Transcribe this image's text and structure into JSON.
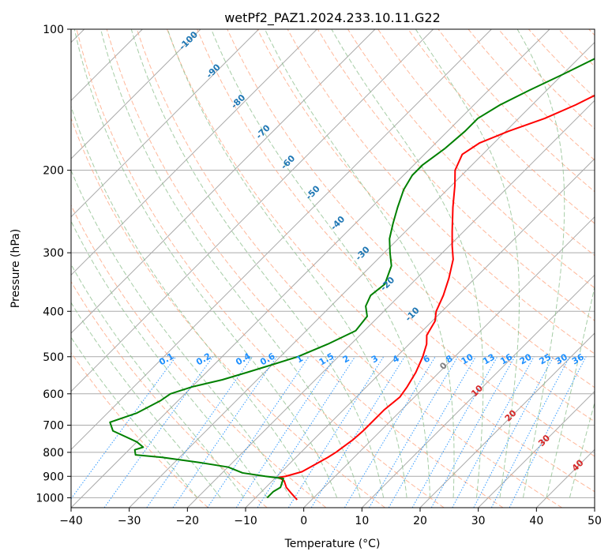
{
  "chart_data": {
    "type": "line",
    "title": "wetPf2_PAZ1.2024.233.10.11.G22",
    "xlabel": "Temperature (°C)",
    "ylabel": "Pressure (hPa)",
    "xlim": [
      -40,
      50
    ],
    "ylim": [
      1050,
      100
    ],
    "y_scale": "log",
    "x_ticks": [
      -40,
      -30,
      -20,
      -10,
      0,
      10,
      20,
      30,
      40,
      50
    ],
    "y_ticks": [
      100,
      200,
      300,
      400,
      500,
      600,
      700,
      800,
      900,
      1000
    ],
    "grid": true,
    "skew": true,
    "colors": {
      "temperature": "#ff0000",
      "dewpoint": "#008000",
      "isotherm": "#aaaaaa",
      "dry_adiabat": "#ffa07a",
      "moist_adiabat": "#90c090",
      "mixing_ratio": "#1e90ff",
      "dry_label": "#d62728",
      "moist_label": "#1f77b4",
      "mixing_label": "#1e90ff",
      "zero_label": "#808080"
    },
    "series": [
      {
        "key": "temperature",
        "points": [
          [
            1010,
            -2.5
          ],
          [
            980,
            -4.5
          ],
          [
            950,
            -6.5
          ],
          [
            920,
            -8.0
          ],
          [
            905,
            -9.5
          ],
          [
            900,
            -8.5
          ],
          [
            880,
            -6.5
          ],
          [
            850,
            -5.5
          ],
          [
            820,
            -4.5
          ],
          [
            800,
            -4.0
          ],
          [
            750,
            -3.2
          ],
          [
            720,
            -3.0
          ],
          [
            700,
            -3.0
          ],
          [
            650,
            -3.0
          ],
          [
            610,
            -2.5
          ],
          [
            580,
            -3.0
          ],
          [
            540,
            -4.0
          ],
          [
            500,
            -5.5
          ],
          [
            470,
            -7.0
          ],
          [
            450,
            -8.5
          ],
          [
            420,
            -9.5
          ],
          [
            400,
            -11.0
          ],
          [
            370,
            -12.5
          ],
          [
            340,
            -14.5
          ],
          [
            310,
            -17.0
          ],
          [
            290,
            -19.5
          ],
          [
            270,
            -22.0
          ],
          [
            240,
            -26.0
          ],
          [
            215,
            -29.5
          ],
          [
            200,
            -32.0
          ],
          [
            185,
            -33.5
          ],
          [
            175,
            -32.5
          ],
          [
            165,
            -29.5
          ],
          [
            155,
            -25.5
          ],
          [
            145,
            -22.5
          ],
          [
            135,
            -20.0
          ],
          [
            125,
            -18.5
          ],
          [
            115,
            -16.5
          ],
          [
            105,
            -13.5
          ],
          [
            100,
            -11.5
          ]
        ]
      },
      {
        "key": "dewpoint",
        "points": [
          [
            1000,
            -8.0
          ],
          [
            970,
            -8.0
          ],
          [
            950,
            -7.5
          ],
          [
            930,
            -8.0
          ],
          [
            910,
            -8.5
          ],
          [
            900,
            -12.0
          ],
          [
            885,
            -16.5
          ],
          [
            860,
            -20.0
          ],
          [
            840,
            -26.0
          ],
          [
            820,
            -33.0
          ],
          [
            810,
            -38.0
          ],
          [
            790,
            -39.0
          ],
          [
            780,
            -38.0
          ],
          [
            760,
            -40.0
          ],
          [
            720,
            -46.0
          ],
          [
            690,
            -48.0
          ],
          [
            660,
            -45.0
          ],
          [
            640,
            -44.0
          ],
          [
            620,
            -43.0
          ],
          [
            600,
            -42.5
          ],
          [
            580,
            -40.0
          ],
          [
            560,
            -36.0
          ],
          [
            540,
            -33.0
          ],
          [
            520,
            -30.0
          ],
          [
            500,
            -27.0
          ],
          [
            470,
            -24.0
          ],
          [
            440,
            -21.5
          ],
          [
            410,
            -22.0
          ],
          [
            390,
            -24.0
          ],
          [
            370,
            -25.0
          ],
          [
            350,
            -24.5
          ],
          [
            320,
            -26.5
          ],
          [
            300,
            -29.0
          ],
          [
            280,
            -31.5
          ],
          [
            260,
            -33.5
          ],
          [
            240,
            -35.5
          ],
          [
            220,
            -37.5
          ],
          [
            205,
            -38.5
          ],
          [
            195,
            -38.5
          ],
          [
            180,
            -37.5
          ],
          [
            165,
            -37.0
          ],
          [
            155,
            -37.0
          ],
          [
            145,
            -35.5
          ],
          [
            135,
            -33.0
          ],
          [
            125,
            -30.0
          ],
          [
            115,
            -27.0
          ],
          [
            105,
            -24.0
          ],
          [
            100,
            -22.5
          ]
        ]
      }
    ],
    "dry_adiabat_labels": [
      "0",
      "10",
      "20",
      "30",
      "40"
    ],
    "moist_adiabat_labels": [
      "-100",
      "-90",
      "-80",
      "-70",
      "-60",
      "-50",
      "-40",
      "-30",
      "-20",
      "-10"
    ],
    "mixing_ratio_labels": [
      "0.1",
      "0.2",
      "0.4",
      "0.6",
      "1",
      "1.5",
      "2",
      "3",
      "4",
      "6",
      "8",
      "10",
      "13",
      "16",
      "20",
      "25",
      "30",
      "36"
    ]
  }
}
